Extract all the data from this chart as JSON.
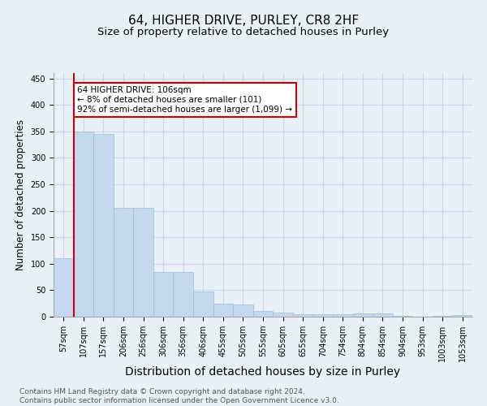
{
  "title_line1": "64, HIGHER DRIVE, PURLEY, CR8 2HF",
  "title_line2": "Size of property relative to detached houses in Purley",
  "xlabel": "Distribution of detached houses by size in Purley",
  "ylabel": "Number of detached properties",
  "categories": [
    "57sqm",
    "107sqm",
    "157sqm",
    "206sqm",
    "256sqm",
    "306sqm",
    "356sqm",
    "406sqm",
    "455sqm",
    "505sqm",
    "555sqm",
    "605sqm",
    "655sqm",
    "704sqm",
    "754sqm",
    "804sqm",
    "854sqm",
    "904sqm",
    "953sqm",
    "1003sqm",
    "1053sqm"
  ],
  "values": [
    110,
    350,
    345,
    205,
    205,
    85,
    85,
    47,
    25,
    23,
    10,
    8,
    5,
    5,
    5,
    6,
    6,
    2,
    0,
    2,
    3
  ],
  "bar_color": "#c5d8f0",
  "bar_edge_color": "#a0bcd8",
  "vline_x_index": 1,
  "annotation_text": "64 HIGHER DRIVE: 106sqm\n← 8% of detached houses are smaller (101)\n92% of semi-detached houses are larger (1,099) →",
  "annotation_box_color": "#ffffff",
  "annotation_box_edge": "#cc0000",
  "vline_color": "#cc0000",
  "ylim": [
    0,
    460
  ],
  "yticks": [
    0,
    50,
    100,
    150,
    200,
    250,
    300,
    350,
    400,
    450
  ],
  "grid_color": "#c8d8e8",
  "bg_color": "#e8f0f8",
  "footnote": "Contains HM Land Registry data © Crown copyright and database right 2024.\nContains public sector information licensed under the Open Government Licence v3.0.",
  "title_fontsize": 11,
  "subtitle_fontsize": 9.5,
  "xlabel_fontsize": 10,
  "ylabel_fontsize": 8.5,
  "tick_fontsize": 7,
  "footnote_fontsize": 6.5,
  "annotation_fontsize": 7.5
}
